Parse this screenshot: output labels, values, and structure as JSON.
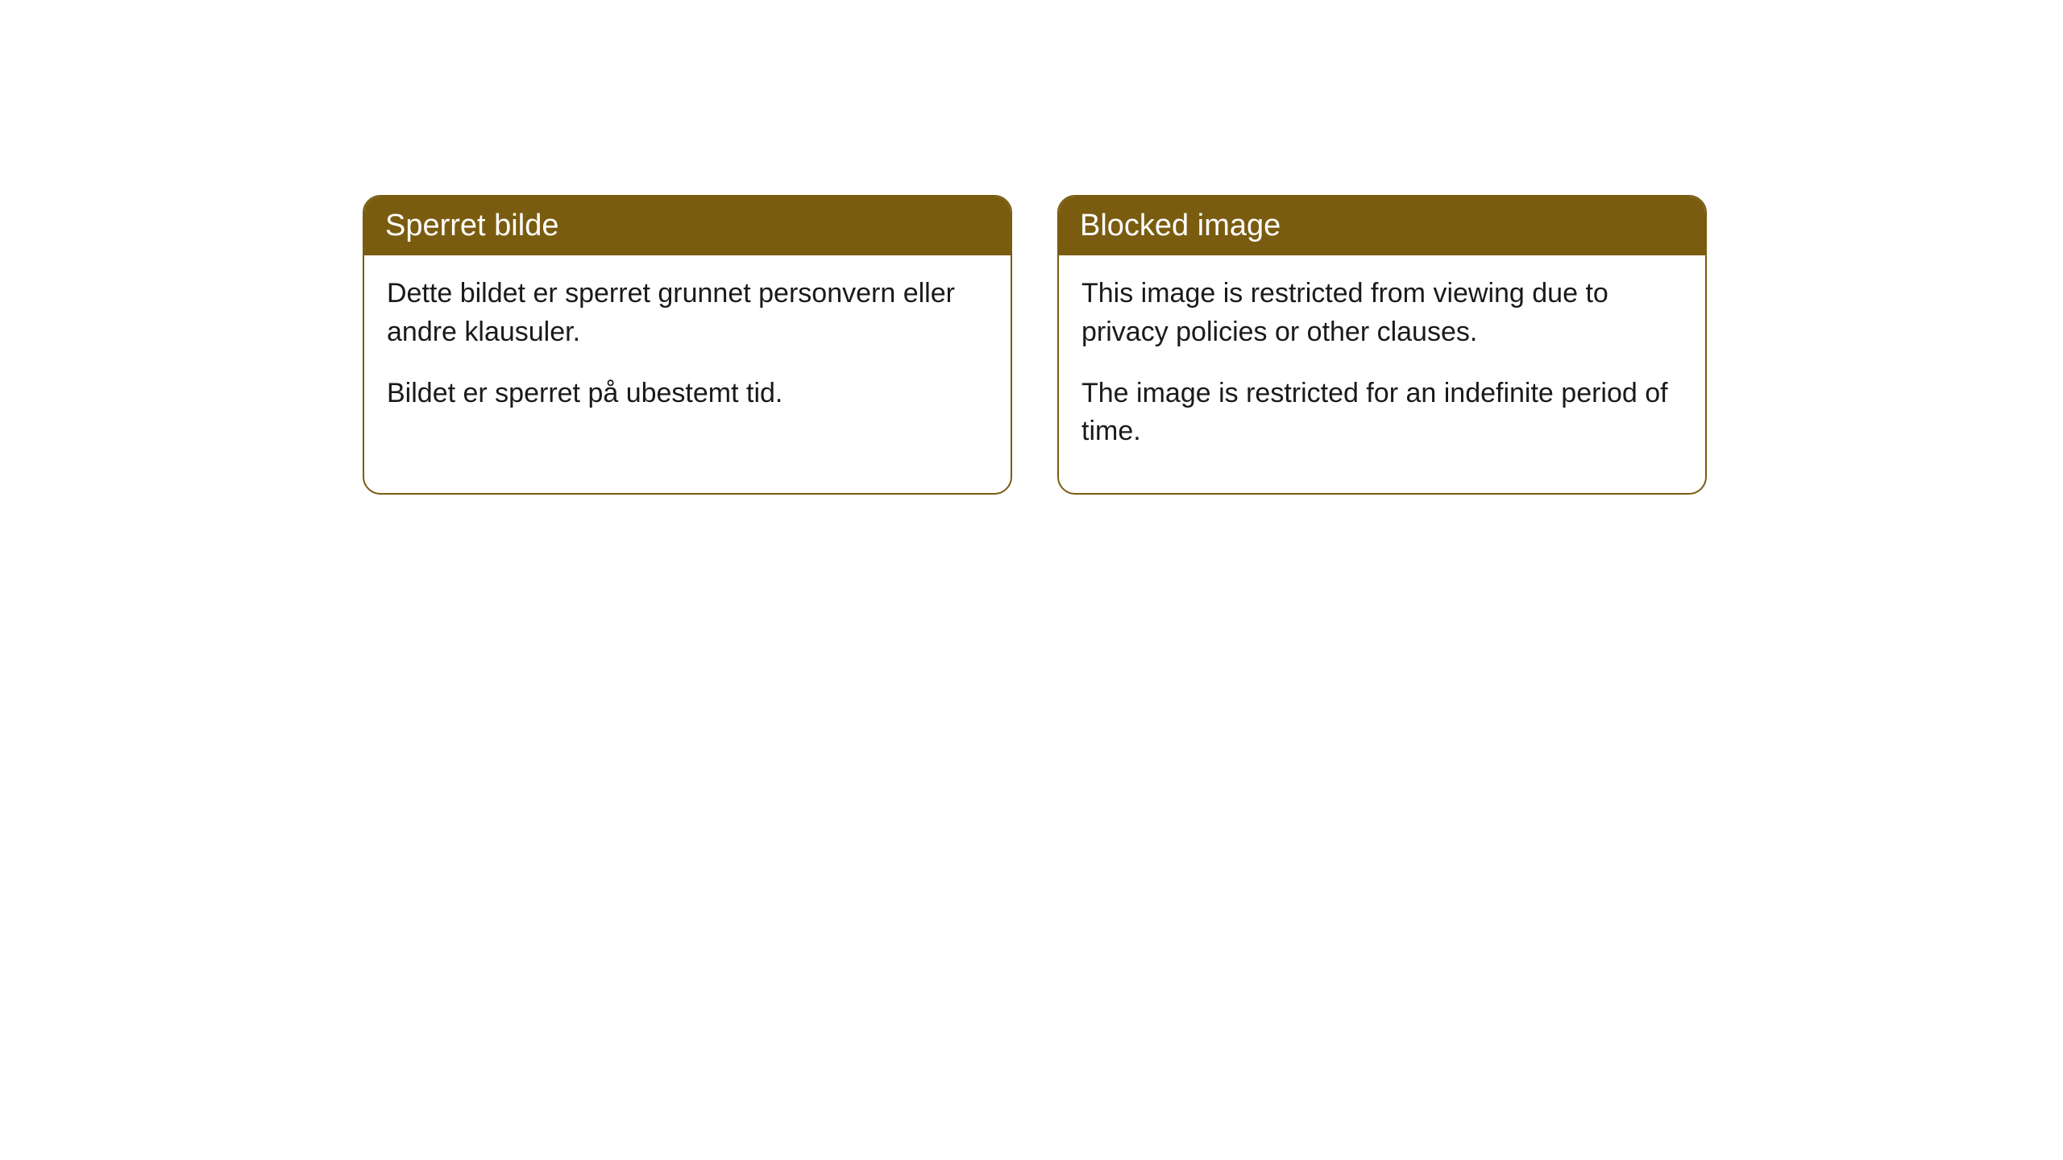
{
  "cards": [
    {
      "title": "Sperret bilde",
      "paragraph1": "Dette bildet er sperret grunnet personvern eller andre klausuler.",
      "paragraph2": "Bildet er sperret på ubestemt tid."
    },
    {
      "title": "Blocked image",
      "paragraph1": "This image is restricted from viewing due to privacy policies or other clauses.",
      "paragraph2": "The image is restricted for an indefinite period of time."
    }
  ],
  "style": {
    "header_background": "#7a5c11",
    "header_text_color": "#ffffff",
    "border_color": "#7a5c11",
    "body_text_color": "#1a1a1a",
    "page_background": "#ffffff",
    "border_radius": 22,
    "header_fontsize": 38,
    "body_fontsize": 34
  }
}
